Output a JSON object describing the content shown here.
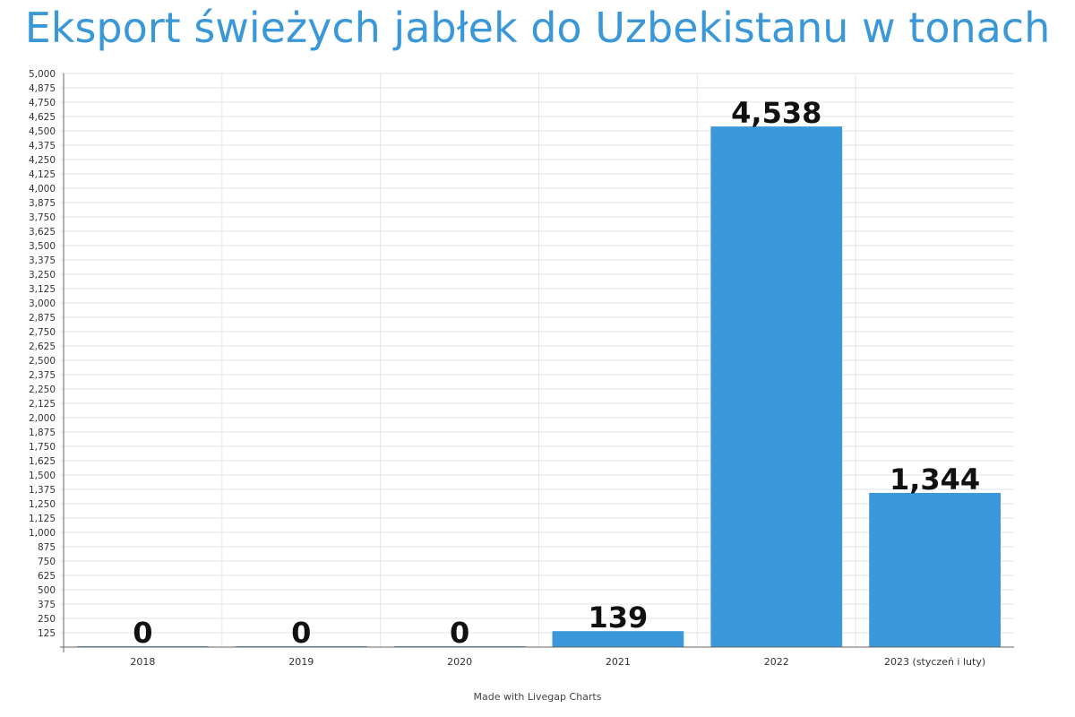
{
  "chart_data": {
    "type": "bar",
    "title": "Eksport świeżych jabłek do Uzbekistanu w tonach",
    "categories": [
      "2018",
      "2019",
      "2020",
      "2021",
      "2022",
      "2023 (styczeń i luty)"
    ],
    "values": [
      0,
      0,
      0,
      139,
      4538,
      1344
    ],
    "data_labels": [
      "0",
      "0",
      "0",
      "139",
      "4,538",
      "1,344"
    ],
    "ylim": [
      0,
      5000
    ],
    "ytick_step": 125,
    "grid": true,
    "legend": "none",
    "bar_color": "#3a98db",
    "title_color": "#3a98d8"
  },
  "footer": {
    "credit": "Made with Livegap Charts"
  }
}
